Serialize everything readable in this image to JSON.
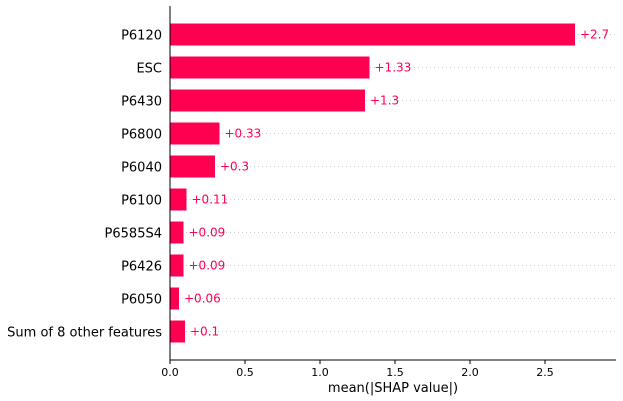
{
  "chart_data": {
    "type": "bar",
    "orientation": "horizontal",
    "categories": [
      "P6120",
      "ESC",
      "P6430",
      "P6800",
      "P6040",
      "P6100",
      "P6585S4",
      "P6426",
      "P6050",
      "Sum of 8 other features"
    ],
    "values": [
      2.7,
      1.33,
      1.3,
      0.33,
      0.3,
      0.11,
      0.09,
      0.09,
      0.06,
      0.1
    ],
    "value_labels": [
      "+2.7",
      "+1.33",
      "+1.3",
      "+0.33",
      "+0.3",
      "+0.11",
      "+0.09",
      "+0.09",
      "+0.06",
      "+0.1"
    ],
    "xlabel": "mean(|SHAP value|)",
    "xticks": [
      0.0,
      0.5,
      1.0,
      1.5,
      2.0,
      2.5
    ],
    "xtick_labels": [
      "0.0",
      "0.5",
      "1.0",
      "1.5",
      "2.0",
      "2.5"
    ],
    "xlim": [
      0,
      2.97
    ],
    "grid": "dotted horizontal row lines",
    "colors": {
      "bar": "#ff0051",
      "label": "#ff0051",
      "grid": "#cccccc"
    }
  }
}
